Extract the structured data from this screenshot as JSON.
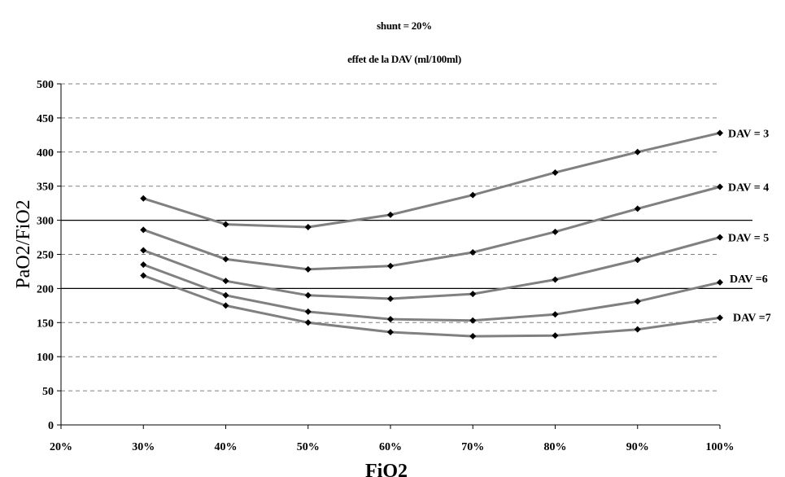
{
  "chart_data": {
    "type": "line",
    "title": "shunt = 20%",
    "subtitle": "effet de la DAV (ml/100ml)",
    "xlabel": "FiO2",
    "ylabel": "PaO2/FiO2",
    "x_ticks": [
      "20%",
      "30%",
      "40%",
      "50%",
      "60%",
      "70%",
      "80%",
      "90%",
      "100%"
    ],
    "xlim": [
      20,
      100
    ],
    "ylim": [
      0,
      500
    ],
    "y_ticks": [
      0,
      50,
      100,
      150,
      200,
      250,
      300,
      350,
      400,
      450,
      500
    ],
    "grid": "horizontal-dashed",
    "reference_lines": [
      200,
      300
    ],
    "x": [
      30,
      40,
      50,
      60,
      70,
      80,
      90,
      100
    ],
    "series": [
      {
        "name": "DAV = 3",
        "values": [
          332,
          294,
          290,
          308,
          337,
          370,
          400,
          428
        ]
      },
      {
        "name": "DAV = 4",
        "values": [
          286,
          243,
          228,
          233,
          253,
          283,
          317,
          349
        ]
      },
      {
        "name": "DAV = 5",
        "values": [
          256,
          211,
          190,
          185,
          192,
          213,
          242,
          275
        ]
      },
      {
        "name": "DAV =6",
        "values": [
          235,
          190,
          166,
          155,
          153,
          162,
          181,
          209
        ]
      },
      {
        "name": "DAV =7",
        "values": [
          219,
          175,
          150,
          136,
          130,
          131,
          140,
          157
        ]
      }
    ],
    "colors": {
      "line": "#808080",
      "marker": "#000000",
      "grid": "#808080",
      "reference": "#000000"
    }
  }
}
